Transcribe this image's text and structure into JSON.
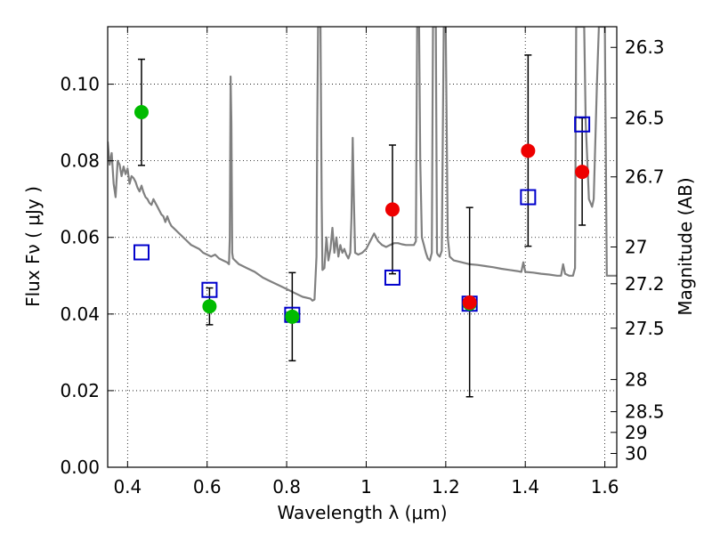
{
  "chart_data": {
    "type": "scatter",
    "xlabel": "Wavelength  λ (μm)",
    "ylabel": "Flux  Fν  ( μJy )",
    "ylabel_right": "Magnitude (AB)",
    "xlim": [
      0.35,
      1.63
    ],
    "ylim": [
      0.0,
      0.115
    ],
    "grid": true,
    "x_ticks": [
      0.4,
      0.6,
      0.8,
      1.0,
      1.2,
      1.4,
      1.6
    ],
    "x_tick_labels": [
      "0.4",
      "0.6",
      "0.8",
      "1",
      "1.2",
      "1.4",
      "1.6"
    ],
    "y_ticks": [
      0.0,
      0.02,
      0.04,
      0.06,
      0.08,
      0.1
    ],
    "y_tick_labels": [
      "0.00",
      "0.02",
      "0.04",
      "0.06",
      "0.08",
      "0.10"
    ],
    "right_ticks": [
      {
        "label": "26.3",
        "flux": 0.1096
      },
      {
        "label": "26.5",
        "flux": 0.0912
      },
      {
        "label": "26.7",
        "flux": 0.0758
      },
      {
        "label": "27",
        "flux": 0.0575
      },
      {
        "label": "27.2",
        "flux": 0.0479
      },
      {
        "label": "27.5",
        "flux": 0.0363
      },
      {
        "label": "28",
        "flux": 0.0229
      },
      {
        "label": "28.5",
        "flux": 0.0145
      },
      {
        "label": "29",
        "flux": 0.0091
      },
      {
        "label": "30",
        "flux": 0.0036
      }
    ],
    "colors": {
      "green": "#00bb00",
      "red": "#ee0000",
      "blue": "#0000cc",
      "spectrum": "#808080",
      "errorbar": "#000000"
    },
    "series": [
      {
        "marker": "circle",
        "color": "green",
        "points": [
          {
            "x": 0.435,
            "y": 0.0927,
            "yerr_low": 0.0139,
            "yerr_high": 0.0138
          },
          {
            "x": 0.606,
            "y": 0.042,
            "yerr_low": 0.0048,
            "yerr_high": 0.0048
          },
          {
            "x": 0.814,
            "y": 0.0393,
            "yerr_low": 0.0115,
            "yerr_high": 0.0115
          },
          {
            "x": 1.26,
            "y": 0.0427,
            "yerr_low": 0.0243,
            "yerr_high": 0.0251
          }
        ]
      },
      {
        "marker": "circle",
        "color": "red",
        "points": [
          {
            "x": 1.066,
            "y": 0.0673,
            "yerr_low": 0.0168,
            "yerr_high": 0.0168
          },
          {
            "x": 1.26,
            "y": 0.043
          },
          {
            "x": 1.407,
            "y": 0.0826,
            "yerr_low": 0.0249,
            "yerr_high": 0.025
          },
          {
            "x": 1.543,
            "y": 0.0771,
            "yerr_low": 0.0139,
            "yerr_high": 0.0141
          }
        ]
      },
      {
        "marker": "open-square",
        "color": "blue",
        "points": [
          {
            "x": 0.435,
            "y": 0.0561
          },
          {
            "x": 0.606,
            "y": 0.0463
          },
          {
            "x": 0.814,
            "y": 0.0398
          },
          {
            "x": 1.066,
            "y": 0.0495
          },
          {
            "x": 1.26,
            "y": 0.0427
          },
          {
            "x": 1.407,
            "y": 0.0705
          },
          {
            "x": 1.543,
            "y": 0.0895
          }
        ]
      }
    ],
    "spectrum": [
      [
        0.35,
        0.085
      ],
      [
        0.355,
        0.079
      ],
      [
        0.36,
        0.082
      ],
      [
        0.365,
        0.074
      ],
      [
        0.37,
        0.0705
      ],
      [
        0.375,
        0.08
      ],
      [
        0.38,
        0.079
      ],
      [
        0.385,
        0.076
      ],
      [
        0.39,
        0.0785
      ],
      [
        0.395,
        0.0765
      ],
      [
        0.4,
        0.078
      ],
      [
        0.405,
        0.074
      ],
      [
        0.41,
        0.076
      ],
      [
        0.415,
        0.0755
      ],
      [
        0.42,
        0.0745
      ],
      [
        0.425,
        0.073
      ],
      [
        0.43,
        0.072
      ],
      [
        0.435,
        0.0735
      ],
      [
        0.44,
        0.0718
      ],
      [
        0.445,
        0.0705
      ],
      [
        0.45,
        0.07
      ],
      [
        0.455,
        0.069
      ],
      [
        0.46,
        0.0685
      ],
      [
        0.465,
        0.07
      ],
      [
        0.47,
        0.069
      ],
      [
        0.475,
        0.068
      ],
      [
        0.48,
        0.067
      ],
      [
        0.485,
        0.066
      ],
      [
        0.49,
        0.0655
      ],
      [
        0.495,
        0.064
      ],
      [
        0.5,
        0.0655
      ],
      [
        0.505,
        0.064
      ],
      [
        0.51,
        0.063
      ],
      [
        0.52,
        0.062
      ],
      [
        0.53,
        0.061
      ],
      [
        0.54,
        0.06
      ],
      [
        0.55,
        0.059
      ],
      [
        0.56,
        0.058
      ],
      [
        0.57,
        0.0575
      ],
      [
        0.58,
        0.057
      ],
      [
        0.59,
        0.056
      ],
      [
        0.6,
        0.0555
      ],
      [
        0.61,
        0.055
      ],
      [
        0.62,
        0.0555
      ],
      [
        0.63,
        0.0545
      ],
      [
        0.64,
        0.054
      ],
      [
        0.65,
        0.0535
      ],
      [
        0.655,
        0.053
      ],
      [
        0.657,
        0.06
      ],
      [
        0.659,
        0.102
      ],
      [
        0.661,
        0.09
      ],
      [
        0.663,
        0.056
      ],
      [
        0.665,
        0.0545
      ],
      [
        0.67,
        0.054
      ],
      [
        0.68,
        0.053
      ],
      [
        0.69,
        0.0525
      ],
      [
        0.7,
        0.052
      ],
      [
        0.72,
        0.051
      ],
      [
        0.74,
        0.0495
      ],
      [
        0.76,
        0.0485
      ],
      [
        0.78,
        0.0475
      ],
      [
        0.8,
        0.0465
      ],
      [
        0.82,
        0.0455
      ],
      [
        0.84,
        0.0445
      ],
      [
        0.86,
        0.044
      ],
      [
        0.865,
        0.0435
      ],
      [
        0.87,
        0.0438
      ],
      [
        0.875,
        0.055
      ],
      [
        0.877,
        0.09
      ],
      [
        0.879,
        0.115
      ],
      [
        0.885,
        0.115
      ],
      [
        0.888,
        0.07
      ],
      [
        0.89,
        0.0515
      ],
      [
        0.895,
        0.052
      ],
      [
        0.9,
        0.06
      ],
      [
        0.905,
        0.054
      ],
      [
        0.91,
        0.057
      ],
      [
        0.915,
        0.0625
      ],
      [
        0.92,
        0.056
      ],
      [
        0.925,
        0.06
      ],
      [
        0.93,
        0.055
      ],
      [
        0.935,
        0.058
      ],
      [
        0.94,
        0.056
      ],
      [
        0.945,
        0.057
      ],
      [
        0.95,
        0.0555
      ],
      [
        0.955,
        0.0545
      ],
      [
        0.96,
        0.056
      ],
      [
        0.963,
        0.065
      ],
      [
        0.966,
        0.086
      ],
      [
        0.969,
        0.07
      ],
      [
        0.972,
        0.056
      ],
      [
        0.98,
        0.0555
      ],
      [
        0.99,
        0.056
      ],
      [
        1.0,
        0.057
      ],
      [
        1.01,
        0.059
      ],
      [
        1.02,
        0.061
      ],
      [
        1.03,
        0.059
      ],
      [
        1.04,
        0.058
      ],
      [
        1.05,
        0.0575
      ],
      [
        1.06,
        0.058
      ],
      [
        1.07,
        0.0585
      ],
      [
        1.08,
        0.0585
      ],
      [
        1.09,
        0.0582
      ],
      [
        1.1,
        0.058
      ],
      [
        1.11,
        0.058
      ],
      [
        1.12,
        0.058
      ],
      [
        1.125,
        0.059
      ],
      [
        1.128,
        0.115
      ],
      [
        1.133,
        0.115
      ],
      [
        1.136,
        0.08
      ],
      [
        1.14,
        0.06
      ],
      [
        1.145,
        0.058
      ],
      [
        1.15,
        0.056
      ],
      [
        1.155,
        0.0545
      ],
      [
        1.16,
        0.054
      ],
      [
        1.165,
        0.056
      ],
      [
        1.168,
        0.115
      ],
      [
        1.175,
        0.115
      ],
      [
        1.178,
        0.056
      ],
      [
        1.18,
        0.0555
      ],
      [
        1.185,
        0.055
      ],
      [
        1.19,
        0.0565
      ],
      [
        1.195,
        0.115
      ],
      [
        1.2,
        0.115
      ],
      [
        1.205,
        0.06
      ],
      [
        1.21,
        0.055
      ],
      [
        1.22,
        0.054
      ],
      [
        1.24,
        0.0535
      ],
      [
        1.26,
        0.053
      ],
      [
        1.28,
        0.0528
      ],
      [
        1.3,
        0.0525
      ],
      [
        1.32,
        0.0522
      ],
      [
        1.34,
        0.0518
      ],
      [
        1.36,
        0.0515
      ],
      [
        1.38,
        0.0512
      ],
      [
        1.39,
        0.051
      ],
      [
        1.395,
        0.0535
      ],
      [
        1.4,
        0.051
      ],
      [
        1.42,
        0.0508
      ],
      [
        1.44,
        0.0505
      ],
      [
        1.46,
        0.0503
      ],
      [
        1.48,
        0.05
      ],
      [
        1.49,
        0.05
      ],
      [
        1.495,
        0.053
      ],
      [
        1.5,
        0.0505
      ],
      [
        1.51,
        0.05
      ],
      [
        1.52,
        0.05
      ],
      [
        1.525,
        0.052
      ],
      [
        1.528,
        0.115
      ],
      [
        1.548,
        0.115
      ],
      [
        1.552,
        0.09
      ],
      [
        1.56,
        0.07
      ],
      [
        1.568,
        0.068
      ],
      [
        1.572,
        0.07
      ],
      [
        1.58,
        0.1
      ],
      [
        1.585,
        0.115
      ],
      [
        1.598,
        0.115
      ],
      [
        1.6,
        0.115
      ],
      [
        1.605,
        0.05
      ],
      [
        1.61,
        0.05
      ],
      [
        1.63,
        0.05
      ]
    ]
  }
}
